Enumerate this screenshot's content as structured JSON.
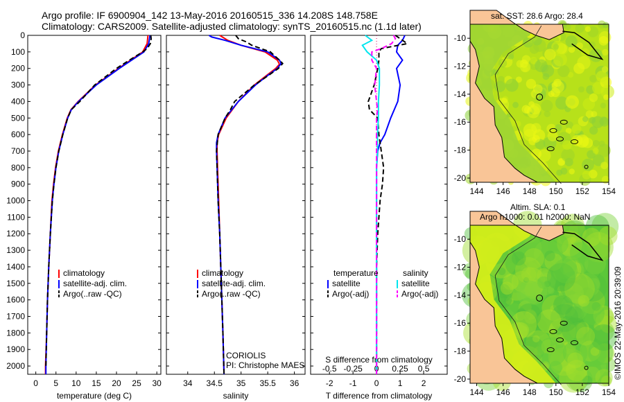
{
  "header": {
    "line1": "Argo profile: IF 6900904_142 13-May-2016 20160515_336 14.208S 148.758E",
    "line2": "Climatology: CARS2009. Satellite-adjusted climatology: synTS_20160515.nc (1.1d later)"
  },
  "colors": {
    "climatology": "#ff0000",
    "satellite": "#0000ff",
    "argo": "#000000",
    "sal_satellite": "#00e5ee",
    "sal_argo": "#ff00ff",
    "land": "#f9c597",
    "ocean_shallow": "#f5ff10",
    "ocean_deep": "#62c83c"
  },
  "credit": {
    "coriolis": "CORIOLIS",
    "pi": "PI: Christophe MAES",
    "imos": "©IMOS 22-May-2016 20:39:09"
  },
  "maps": {
    "sst_title": "sat. SST: 28.6 Argo: 28.4",
    "sla_title1": "Altim. SLA: 0.1",
    "sla_title2": "Argo h1000: 0.01 h2000: NaN",
    "lat_ticks": [
      "-10",
      "-12",
      "-14",
      "-16",
      "-18",
      "-20"
    ],
    "lon_ticks": [
      "144",
      "146",
      "148",
      "150",
      "152",
      "154"
    ]
  },
  "chart_data": [
    {
      "type": "line",
      "xlabel": "temperature (deg C)",
      "ylabel": "",
      "xlim": [
        -2,
        31
      ],
      "ylim": [
        2050,
        0
      ],
      "xticks": [
        "0",
        "5",
        "10",
        "15",
        "20",
        "25",
        "30"
      ],
      "yticks": [
        "0",
        "100",
        "200",
        "300",
        "400",
        "500",
        "600",
        "700",
        "800",
        "900",
        "1000",
        "1100",
        "1200",
        "1300",
        "1400",
        "1500",
        "1600",
        "1700",
        "1800",
        "1900",
        "2000"
      ],
      "legend": [
        "climatology",
        "satellite-adj. clim.",
        "Argo(..raw -QC)"
      ],
      "legend_position": "lower-center",
      "series": [
        {
          "name": "climatology",
          "depth": [
            0,
            50,
            100,
            200,
            300,
            400,
            450,
            500,
            600,
            700,
            800,
            900,
            1000,
            1200,
            1400,
            1600,
            1800,
            2000,
            2050
          ],
          "values": [
            27.8,
            27.6,
            26.5,
            20.5,
            14.8,
            10.5,
            8.7,
            7.8,
            6.6,
            5.6,
            4.9,
            4.4,
            4.0,
            3.6,
            3.2,
            2.9,
            2.7,
            2.4,
            2.4
          ]
        },
        {
          "name": "satellite-adj. clim.",
          "depth": [
            0,
            50,
            100,
            200,
            300,
            400,
            450,
            500,
            600,
            700,
            800,
            900,
            1000,
            1200,
            1400,
            1600,
            1800,
            2000,
            2050
          ],
          "values": [
            28.3,
            28.0,
            26.8,
            20.7,
            15.0,
            10.6,
            8.8,
            7.9,
            6.7,
            5.7,
            5.0,
            4.5,
            4.1,
            3.6,
            3.2,
            2.9,
            2.7,
            2.5,
            2.5
          ]
        },
        {
          "name": "Argo(..raw -QC)",
          "depth": [
            0,
            20,
            50,
            80,
            100,
            150,
            200,
            300,
            400,
            450,
            500,
            600,
            700,
            800,
            900,
            1000,
            1200,
            1400,
            1600,
            1800,
            2000
          ],
          "values": [
            28.5,
            28.6,
            28.4,
            27.6,
            26.5,
            23.2,
            20.0,
            14.6,
            10.9,
            8.8,
            7.9,
            6.7,
            5.7,
            5.0,
            4.5,
            4.1,
            3.6,
            3.2,
            2.9,
            2.7,
            2.5
          ]
        }
      ]
    },
    {
      "type": "line",
      "xlabel": "salinity",
      "ylabel": "",
      "xlim": [
        33.6,
        36.2
      ],
      "ylim": [
        2050,
        0
      ],
      "xticks": [
        "34",
        "34.5",
        "35",
        "35.5",
        "36"
      ],
      "legend": [
        "climatology",
        "satellite-adj. clim.",
        "Argo(..raw -QC)"
      ],
      "legend_position": "lower-center",
      "series": [
        {
          "name": "climatology",
          "depth": [
            0,
            30,
            60,
            100,
            150,
            175,
            200,
            250,
            300,
            400,
            500,
            600,
            650,
            700,
            800,
            1000,
            1200,
            1500,
            1800,
            2050
          ],
          "values": [
            34.6,
            34.75,
            35.0,
            35.45,
            35.68,
            35.72,
            35.65,
            35.45,
            35.25,
            34.95,
            34.72,
            34.58,
            34.55,
            34.55,
            34.56,
            34.58,
            34.6,
            34.63,
            34.66,
            34.68
          ]
        },
        {
          "name": "satellite-adj. clim.",
          "depth": [
            0,
            10,
            30,
            60,
            100,
            150,
            170,
            200,
            250,
            300,
            400,
            500,
            600,
            650,
            700,
            800,
            1000,
            1200,
            1500,
            1800,
            2050
          ],
          "values": [
            34.4,
            34.45,
            34.7,
            35.0,
            35.5,
            35.72,
            35.75,
            35.68,
            35.47,
            35.27,
            34.95,
            34.7,
            34.57,
            34.54,
            34.54,
            34.55,
            34.57,
            34.6,
            34.63,
            34.66,
            34.68
          ]
        },
        {
          "name": "Argo(..raw -QC)",
          "depth": [
            0,
            20,
            40,
            60,
            100,
            150,
            170,
            200,
            250,
            300,
            400,
            450,
            500,
            600,
            700,
            800,
            1000,
            1200,
            1500,
            1800,
            2050
          ],
          "values": [
            34.9,
            34.95,
            35.1,
            35.2,
            35.55,
            35.72,
            35.78,
            35.7,
            35.48,
            35.25,
            34.88,
            34.8,
            34.7,
            34.57,
            34.54,
            34.55,
            34.57,
            34.6,
            34.63,
            34.66,
            34.68
          ]
        }
      ]
    },
    {
      "type": "line",
      "xlabel": "T difference from climatology",
      "xlabel2": "S difference from climatology",
      "xlim": [
        -2.8,
        3.0
      ],
      "ylim": [
        2050,
        0
      ],
      "xticks": [
        "-2",
        "-1",
        "0",
        "1",
        "2"
      ],
      "xticks2": [
        "-0.5",
        "-0.25",
        "0",
        "0.25",
        "0.5"
      ],
      "legend_titles": [
        "temperature",
        "salinity"
      ],
      "legend": [
        "satellite",
        "Argo(-adj)",
        "satellite",
        "Argo(-adj)"
      ],
      "legend_position": "lower-center",
      "series": [
        {
          "name": "satellite",
          "group": "temperature",
          "depth": [
            0,
            30,
            60,
            100,
            150,
            200,
            300,
            400,
            500,
            600,
            650,
            700,
            800,
            1000,
            1200,
            1400,
            1600,
            1800,
            2050
          ],
          "values": [
            1.2,
            1.1,
            0.9,
            0.85,
            1.1,
            0.85,
            1.0,
            0.9,
            0.6,
            0.35,
            0.15,
            0.05,
            0.0,
            0.0,
            0.0,
            0.0,
            0.0,
            0.0,
            0.0
          ]
        },
        {
          "name": "Argo(-adj)",
          "group": "temperature",
          "depth": [
            0,
            20,
            50,
            80,
            100,
            150,
            200,
            300,
            400,
            450,
            500,
            600,
            700,
            800,
            900,
            1000,
            1200,
            1400,
            1600,
            1800,
            2050
          ],
          "values": [
            0.8,
            1.0,
            1.3,
            0.2,
            0.1,
            0.1,
            0.05,
            -0.1,
            -0.35,
            -0.3,
            0.05,
            0.1,
            0.2,
            0.3,
            0.25,
            0.15,
            0.05,
            0.0,
            0.0,
            0.0,
            0.0
          ]
        },
        {
          "name": "satellite",
          "group": "salinity",
          "depth": [
            0,
            30,
            60,
            100,
            150,
            200,
            300,
            400,
            500,
            600,
            700,
            800,
            1000,
            1200,
            1400,
            1600,
            1800,
            2050
          ],
          "values": [
            -0.12,
            -0.05,
            -0.15,
            -0.1,
            0.0,
            0.03,
            0.03,
            0.02,
            0.02,
            0.01,
            0.01,
            0.0,
            0.0,
            0.0,
            0.0,
            0.0,
            0.0,
            0.0
          ]
        },
        {
          "name": "Argo(-adj)",
          "group": "salinity",
          "depth": [
            0,
            20,
            50,
            80,
            100,
            150,
            200,
            300,
            400,
            450,
            500,
            600,
            700,
            800,
            1000,
            1200,
            1400,
            1600,
            1800,
            2050
          ],
          "values": [
            0.18,
            0.2,
            0.16,
            0.05,
            -0.05,
            -0.05,
            0.0,
            -0.02,
            0.0,
            0.01,
            0.0,
            0.0,
            0.0,
            0.0,
            0.0,
            0.0,
            0.0,
            0.0,
            0.0,
            0.0
          ]
        }
      ]
    }
  ]
}
